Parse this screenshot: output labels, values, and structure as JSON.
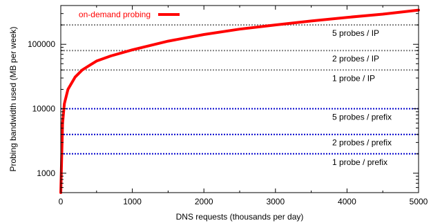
{
  "chart_data": {
    "type": "line",
    "xlabel": "DNS requests (thousands per day)",
    "ylabel": "Probing bandwidth used (MB per week)",
    "xlim": [
      0,
      5000
    ],
    "ylim": [
      500,
      400000
    ],
    "y_scale": "log",
    "grid": false,
    "legend_position": "top-left",
    "x_ticks": [
      0,
      1000,
      2000,
      3000,
      4000,
      5000
    ],
    "x_tick_labels": [
      "0",
      "1000",
      "2000",
      "3000",
      "4000",
      "5000"
    ],
    "y_ticks": [
      1000,
      10000,
      100000
    ],
    "y_tick_labels": [
      "1000",
      "10000",
      "100000"
    ],
    "series": [
      {
        "name": "on-demand probing",
        "color": "#ff0000",
        "x": [
          0,
          25,
          50,
          100,
          200,
          300,
          400,
          500,
          700,
          1000,
          1500,
          2000,
          2500,
          3000,
          3500,
          4000,
          4500,
          5000
        ],
        "y": [
          500,
          6000,
          12000,
          20000,
          31000,
          40000,
          47000,
          55000,
          66000,
          82000,
          112000,
          142000,
          172000,
          200000,
          230000,
          262000,
          294000,
          340000
        ]
      }
    ],
    "reference_lines": [
      {
        "y": 200000,
        "label": "5 probes / IP",
        "color": "#808080"
      },
      {
        "y": 80000,
        "label": "2 probes / IP",
        "color": "#808080"
      },
      {
        "y": 40000,
        "label": "1 probe / IP",
        "color": "#808080"
      },
      {
        "y": 10000,
        "label": "5 probes / prefix",
        "color": "#0000cc"
      },
      {
        "y": 4000,
        "label": "2 probes / prefix",
        "color": "#0000cc"
      },
      {
        "y": 2000,
        "label": "1 probe / prefix",
        "color": "#0000cc"
      }
    ]
  }
}
